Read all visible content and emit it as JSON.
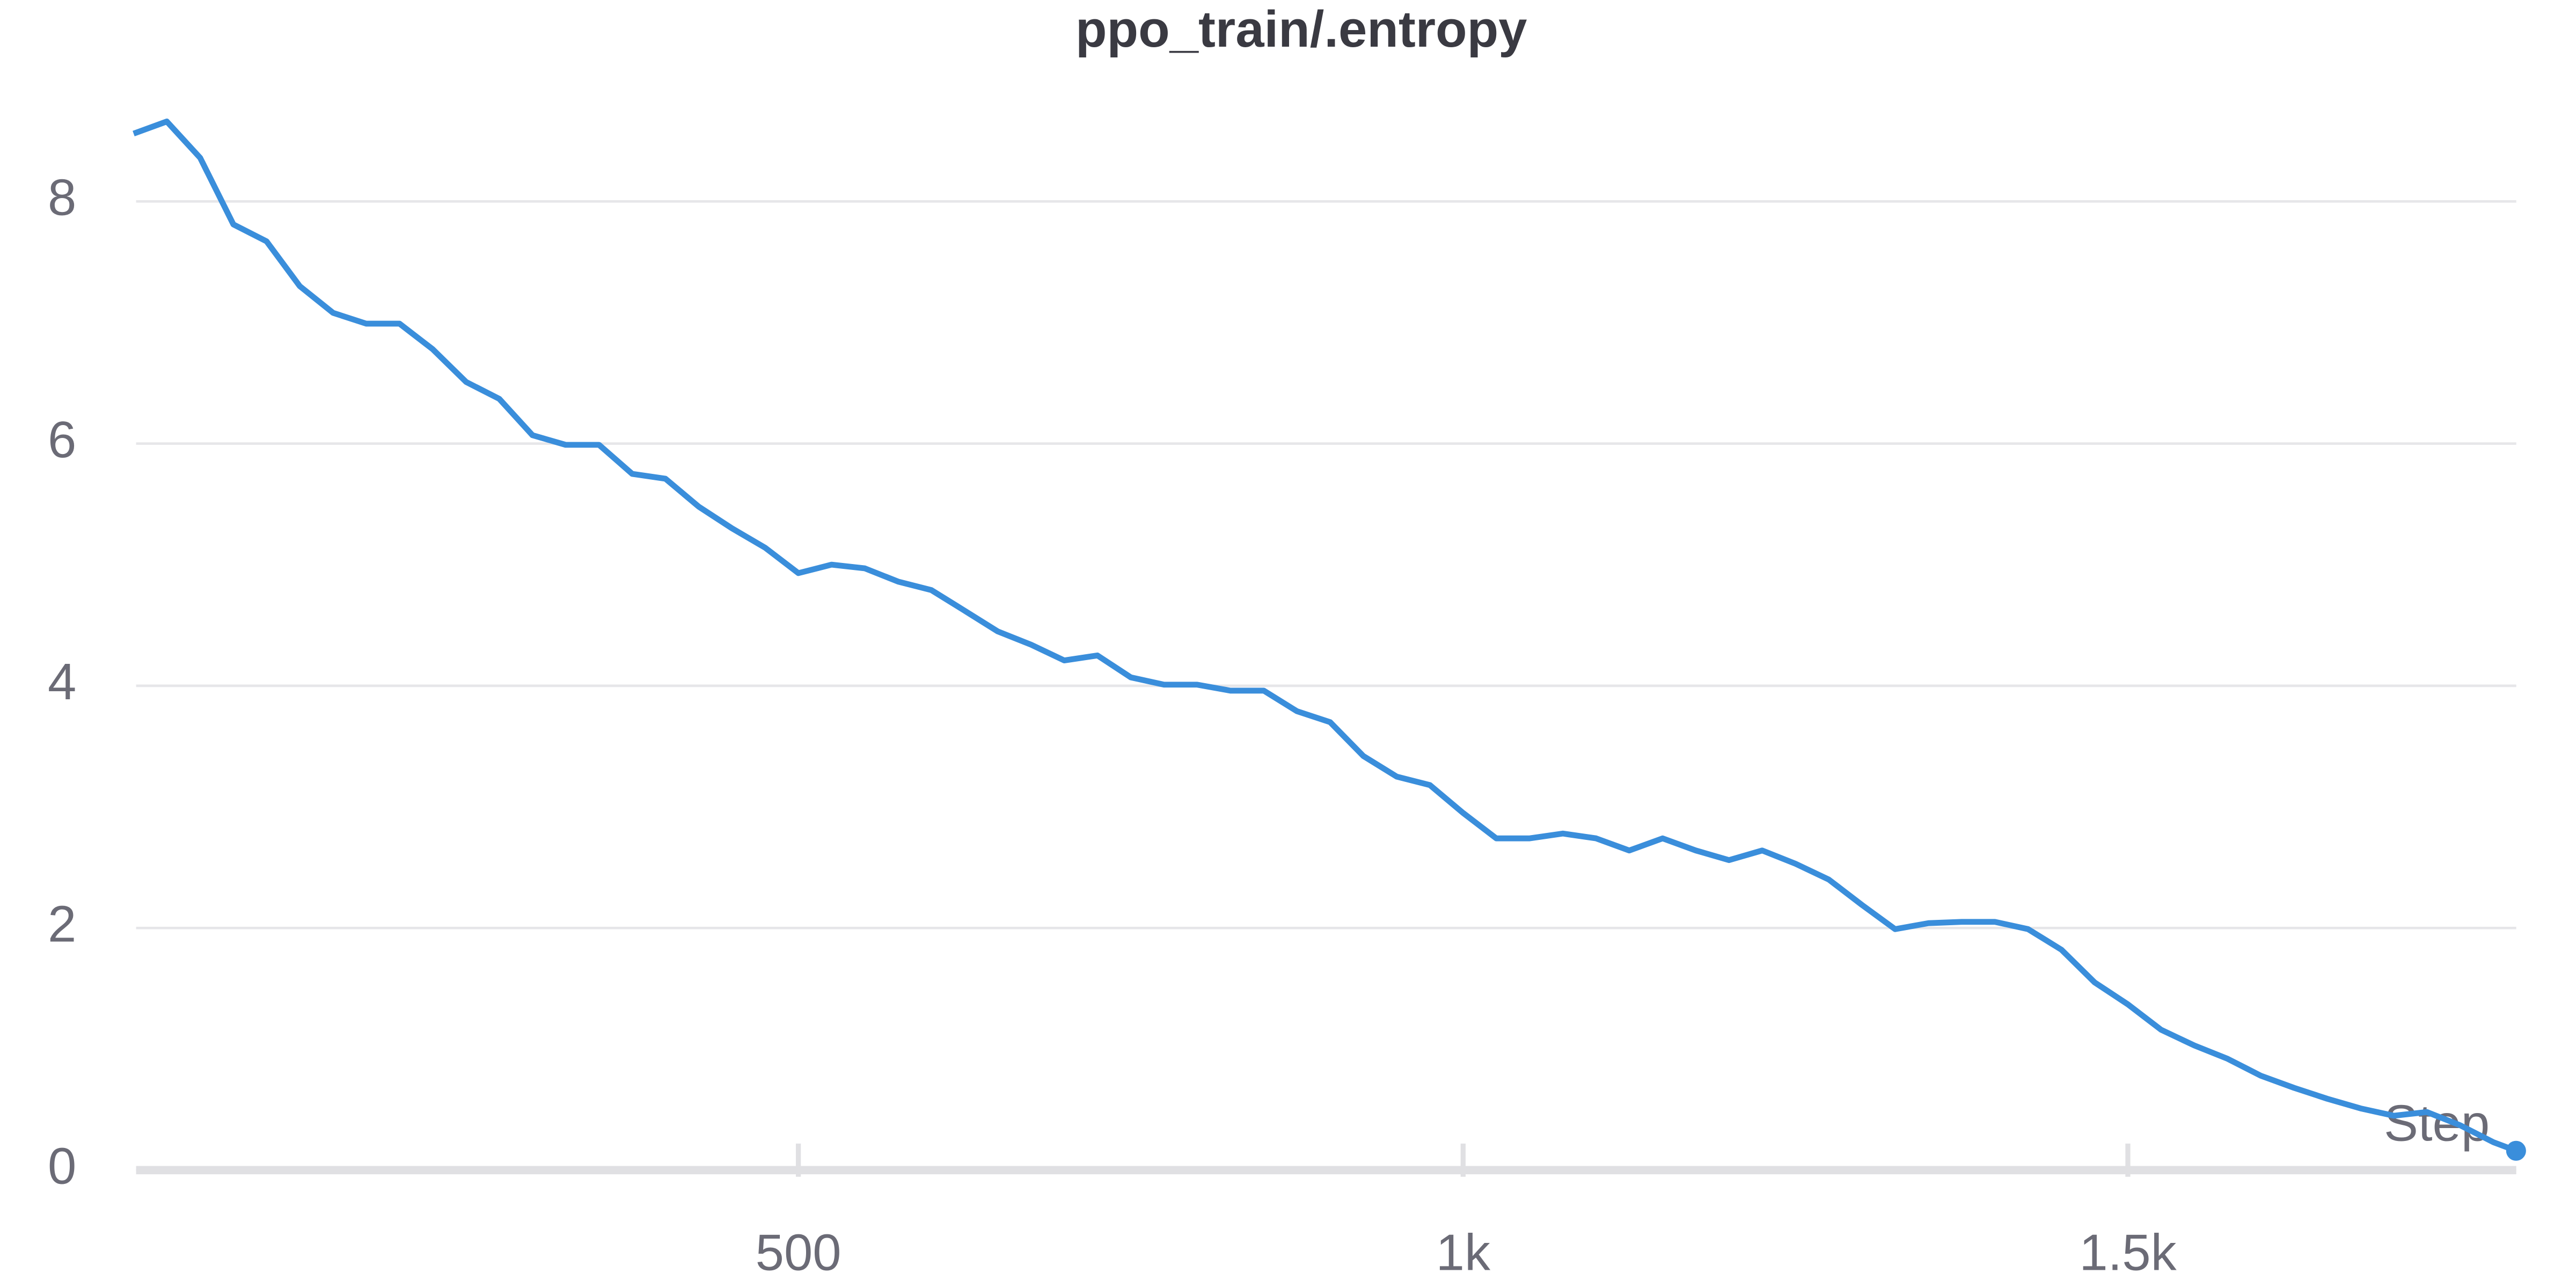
{
  "chart_data": {
    "type": "line",
    "title": "ppo_train/.entropy",
    "x_label": "Step",
    "x": [
      0,
      25,
      50,
      75,
      100,
      125,
      150,
      175,
      200,
      225,
      250,
      275,
      300,
      325,
      350,
      375,
      400,
      425,
      450,
      475,
      500,
      525,
      550,
      575,
      600,
      625,
      650,
      675,
      700,
      725,
      750,
      775,
      800,
      825,
      850,
      875,
      900,
      925,
      950,
      975,
      1000,
      1025,
      1050,
      1075,
      1100,
      1125,
      1150,
      1175,
      1200,
      1225,
      1250,
      1275,
      1300,
      1325,
      1350,
      1375,
      1400,
      1425,
      1450,
      1475,
      1500,
      1525,
      1550,
      1575,
      1600,
      1625,
      1650,
      1675,
      1700,
      1725,
      1750,
      1775,
      1792
    ],
    "series": [
      {
        "name": "ppo_train/.entropy",
        "color": "#3a8edb",
        "values": [
          8.56,
          8.66,
          8.36,
          7.81,
          7.67,
          7.3,
          7.08,
          6.99,
          6.99,
          6.78,
          6.51,
          6.37,
          6.07,
          5.99,
          5.99,
          5.75,
          5.71,
          5.48,
          5.3,
          5.14,
          4.93,
          5.0,
          4.97,
          4.86,
          4.79,
          4.62,
          4.45,
          4.34,
          4.21,
          4.25,
          4.07,
          4.01,
          4.01,
          3.96,
          3.96,
          3.79,
          3.7,
          3.42,
          3.25,
          3.18,
          2.95,
          2.74,
          2.74,
          2.78,
          2.74,
          2.64,
          2.74,
          2.64,
          2.56,
          2.64,
          2.53,
          2.4,
          2.19,
          1.99,
          2.04,
          2.05,
          2.05,
          1.99,
          1.82,
          1.55,
          1.37,
          1.16,
          1.03,
          0.92,
          0.78,
          0.68,
          0.59,
          0.51,
          0.45,
          0.48,
          0.37,
          0.23,
          0.16
        ]
      }
    ],
    "xlim": [
      0,
      1792
    ],
    "xticks": [
      500,
      {
        "value": 1000,
        "label": "1k"
      },
      {
        "value": 1500,
        "label": "1.5k"
      }
    ],
    "ylim": [
      0,
      8.8
    ],
    "yticks": [
      0,
      2,
      4,
      6,
      8
    ],
    "grid": true
  }
}
